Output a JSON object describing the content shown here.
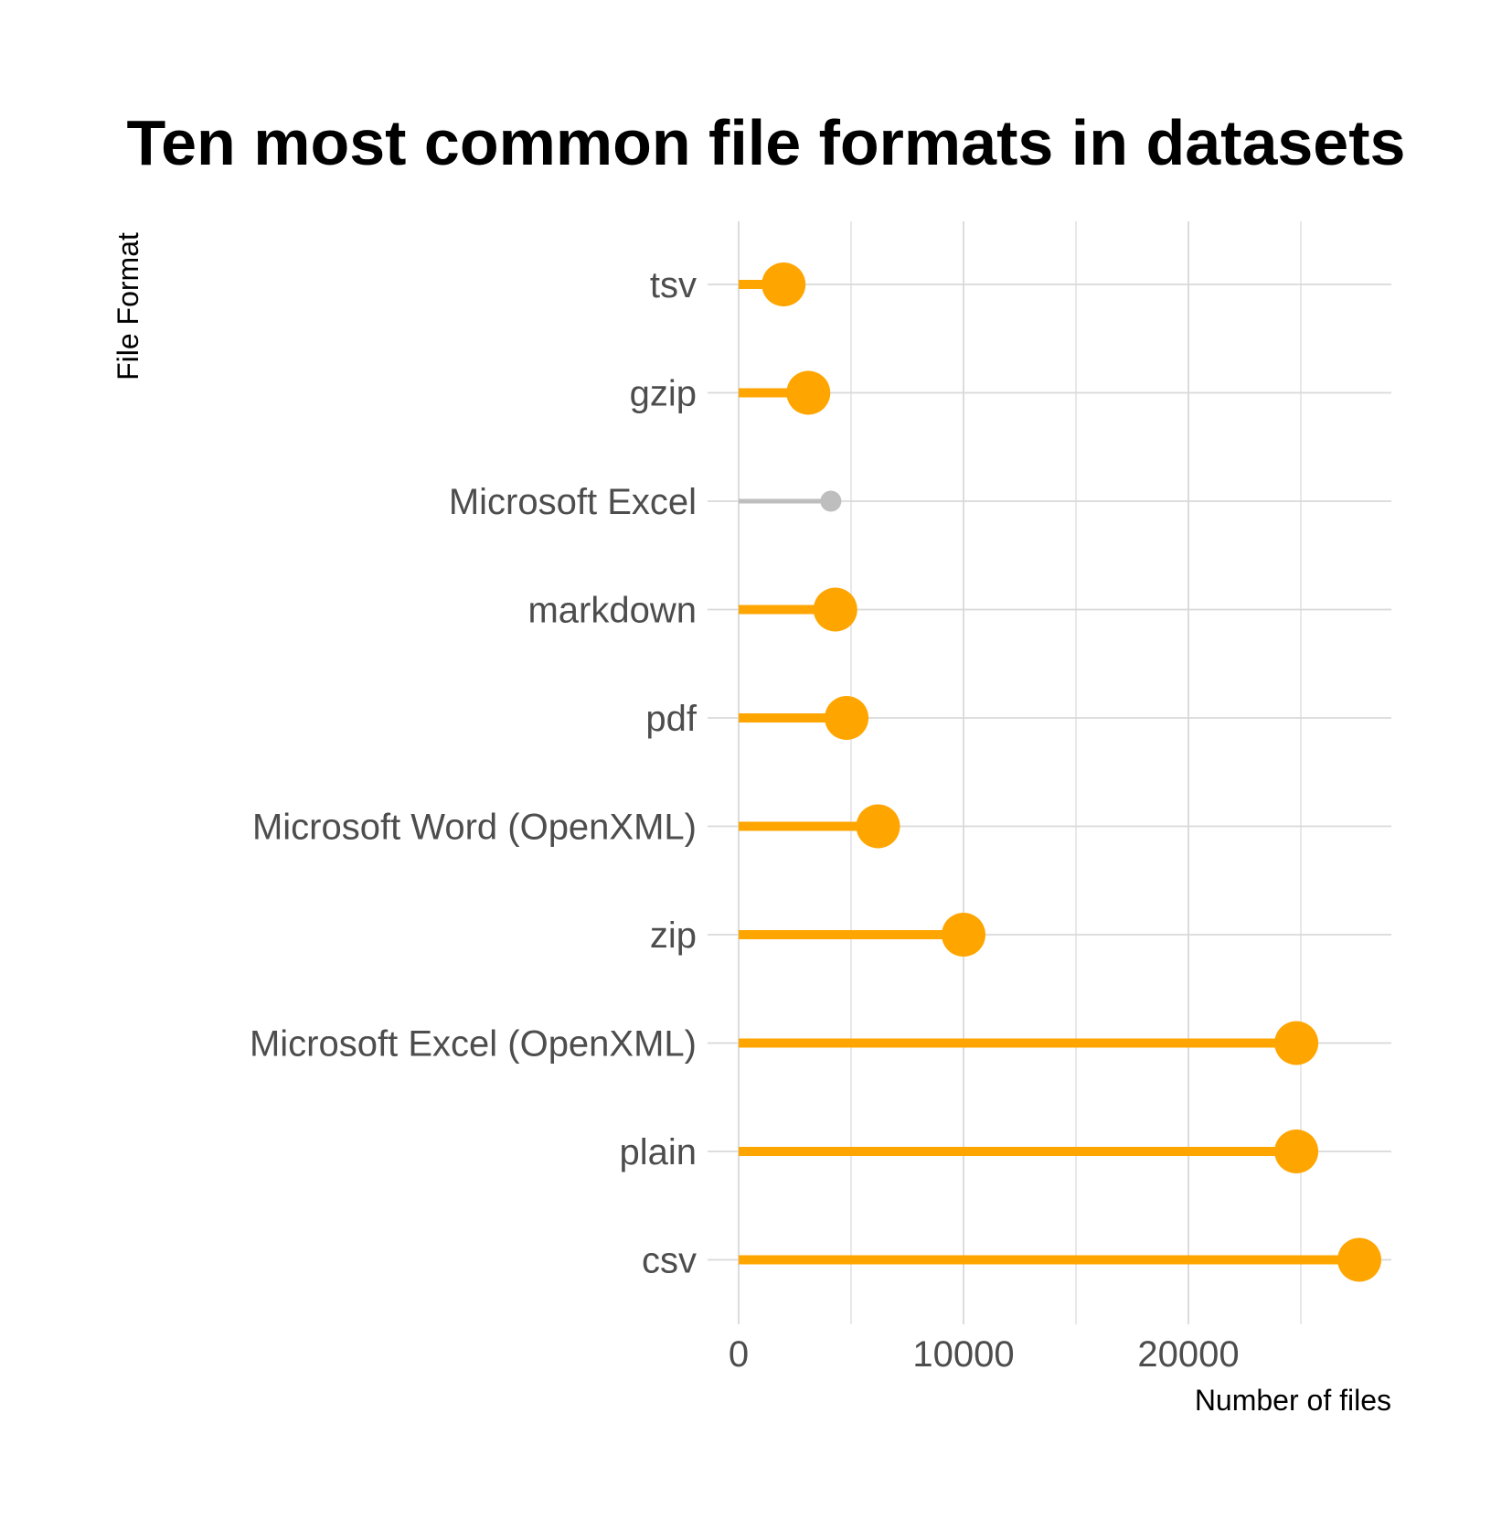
{
  "chart_data": {
    "type": "lollipop",
    "title": "Ten most common file formats in datasets",
    "xlabel": "Number of files",
    "ylabel": "File Format",
    "xlim": [
      0,
      29000
    ],
    "x_ticks": [
      0,
      10000,
      20000
    ],
    "grid": true,
    "legend": "none",
    "colors": {
      "highlight": "#FFA500",
      "muted": "#BEBEBE",
      "grid": "#D9D9D9"
    },
    "categories": [
      "tsv",
      "gzip",
      "Microsoft Excel",
      "markdown",
      "pdf",
      "Microsoft Word (OpenXML)",
      "zip",
      "Microsoft Excel (OpenXML)",
      "plain",
      "csv"
    ],
    "values": [
      2000,
      3100,
      4100,
      4300,
      4800,
      6200,
      10000,
      24800,
      24800,
      27600
    ],
    "highlighted": [
      true,
      true,
      false,
      true,
      true,
      true,
      true,
      true,
      true,
      true
    ]
  }
}
